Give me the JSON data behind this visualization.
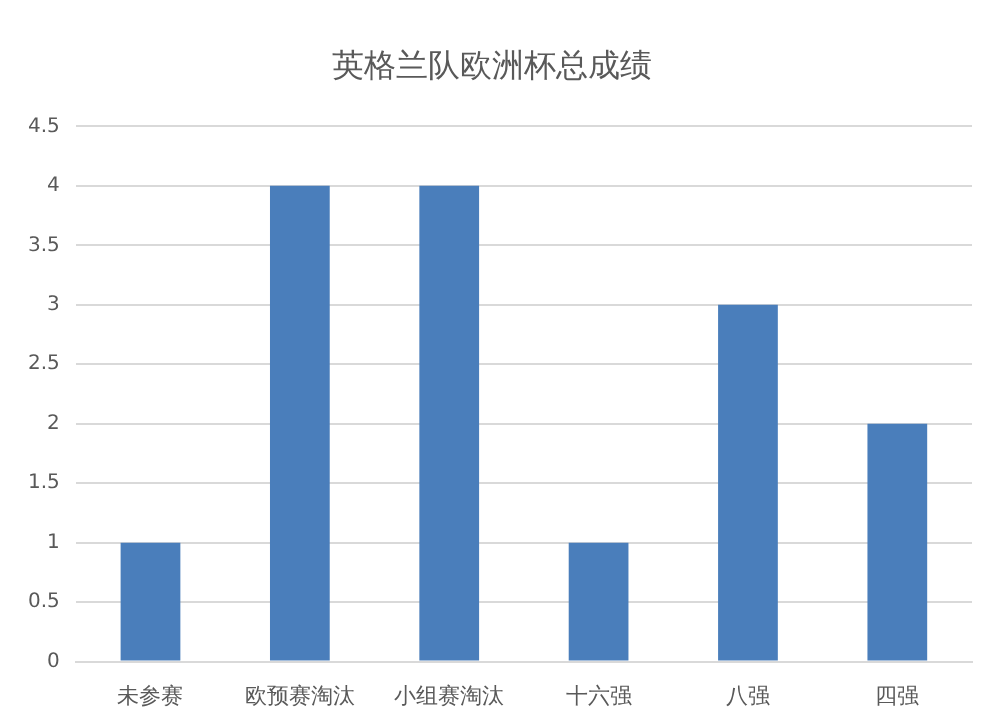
{
  "chart_data": {
    "type": "bar",
    "title": "英格兰队欧洲杯总成绩",
    "categories": [
      "未参赛",
      "欧预赛淘汰",
      "小组赛淘汰",
      "十六强",
      "八强",
      "四强"
    ],
    "values": [
      1,
      4,
      4,
      1,
      3,
      2
    ],
    "color": "#4a7ebb",
    "ylim": [
      0,
      4.5
    ],
    "yticks": [
      0,
      0.5,
      1,
      1.5,
      2,
      2.5,
      3,
      3.5,
      4,
      4.5
    ],
    "grid": "y"
  }
}
